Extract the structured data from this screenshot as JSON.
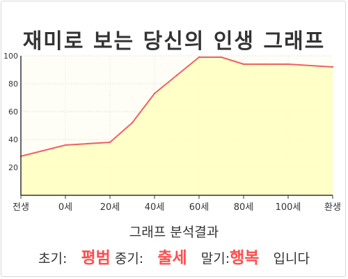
{
  "chart_data": {
    "type": "area",
    "title": "재미로 보는 당신의 인생 그래프",
    "xlabel": "",
    "ylabel": "",
    "categories": [
      "전생",
      "0세",
      "20세",
      "40세",
      "60세",
      "80세",
      "100세",
      "환생"
    ],
    "x_tick_labels": [
      "전생",
      "0세",
      "20세",
      "40세",
      "60세",
      "80세",
      "100세",
      "환생"
    ],
    "y_ticks": [
      20,
      40,
      60,
      80,
      100
    ],
    "ylim": [
      0,
      100
    ],
    "grid": true,
    "series": [
      {
        "x": [
          -20,
          0,
          10,
          20,
          30,
          40,
          50,
          60,
          70,
          80,
          90,
          100,
          120
        ],
        "values": [
          28,
          36,
          37,
          38,
          52,
          73,
          86,
          99,
          99,
          94,
          94,
          94,
          92
        ],
        "color": "#f06060",
        "fill": "#ffffc0"
      }
    ]
  },
  "analysis": {
    "heading": "그래프 분석결과",
    "early_label": "초기:",
    "early_value": "평범",
    "mid_label": "중기:",
    "mid_value": "출세",
    "late_label": "말기:",
    "late_value": "행복",
    "suffix": "입니다"
  },
  "colors": {
    "line": "#f06060",
    "area": "#ffffc0",
    "highlight": "#ff4d4d"
  }
}
